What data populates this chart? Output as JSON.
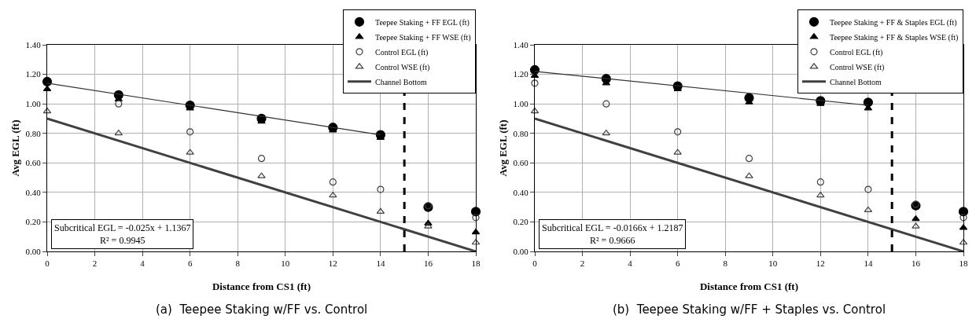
{
  "chart_data": [
    {
      "type": "scatter",
      "title": "(a)  Teepee Staking w/FF vs. Control",
      "xlabel": "Distance from CS1 (ft)",
      "ylabel": "Avg EGL (ft)",
      "x": [
        0,
        3,
        6,
        9,
        12,
        14,
        16,
        18
      ],
      "series": [
        {
          "name": "Teepee Staking + FF EGL (ft)",
          "color": "#000000",
          "marker": "circle",
          "values": [
            1.15,
            1.06,
            0.99,
            0.9,
            0.84,
            0.79,
            0.3,
            0.27
          ]
        },
        {
          "name": "Teepee Staking + FF WSE (ft)",
          "color": "#000000",
          "marker": "triangle",
          "values": [
            1.1,
            1.03,
            0.97,
            0.88,
            0.82,
            0.77,
            0.19,
            0.13
          ]
        },
        {
          "name": "Control EGL (ft)",
          "color": "#404040",
          "marker": "circle-open",
          "values": [
            null,
            1.0,
            0.81,
            0.63,
            0.47,
            0.42,
            0.31,
            0.23
          ]
        },
        {
          "name": "Control WSE (ft)",
          "color": "#404040",
          "marker": "triangle-open",
          "values": [
            0.95,
            0.8,
            0.67,
            0.51,
            0.38,
            0.27,
            0.17,
            0.06
          ]
        },
        {
          "name": "Channel Bottom",
          "type": "line",
          "color": "#404040",
          "marker": "none",
          "x": [
            0,
            18
          ],
          "values": [
            0.9,
            0.0
          ]
        },
        {
          "type": "line",
          "color": "#303030",
          "marker": "none",
          "x": [
            0,
            14
          ],
          "values": [
            1.14,
            0.79
          ]
        }
      ],
      "ref_lines": [
        {
          "axis": "x",
          "value": 15,
          "color": "#000000",
          "line_style": "dashed"
        }
      ],
      "annotations": [
        {
          "text": "Subcritical EGL = -0.025x + 1.1367\nR² = 0.9945"
        }
      ],
      "xlim": [
        0,
        18
      ],
      "xticks": [
        0,
        2,
        4,
        6,
        8,
        10,
        12,
        14,
        16,
        18
      ],
      "ylim": [
        0,
        1.4
      ],
      "yticks": [
        {
          "value": 0,
          "label": "0.00"
        },
        {
          "value": 0.2,
          "label": "0.20"
        },
        {
          "value": 0.4,
          "label": "0.40"
        },
        {
          "value": 0.6,
          "label": "0.60"
        },
        {
          "value": 0.8,
          "label": "0.80"
        },
        {
          "value": 1.0,
          "label": "1.00"
        },
        {
          "value": 1.2,
          "label": "1.20"
        },
        {
          "value": 1.4,
          "label": "1.40"
        }
      ],
      "grid": true,
      "legend": "top right"
    },
    {
      "type": "scatter",
      "title": "(b)  Teepee Staking w/FF + Staples vs. Control",
      "xlabel": "Distance from CS1 (ft)",
      "ylabel": "Avg EGL (ft)",
      "x": [
        0,
        3,
        6,
        9,
        12,
        14,
        16,
        18
      ],
      "series": [
        {
          "name": "Teepee Staking + FF & Staples EGL (ft)",
          "color": "#000000",
          "marker": "circle",
          "values": [
            1.23,
            1.17,
            1.12,
            1.04,
            1.02,
            1.01,
            0.31,
            0.27
          ]
        },
        {
          "name": "Teepee Staking + FF & Staples WSE (ft)",
          "color": "#000000",
          "marker": "triangle",
          "values": [
            1.19,
            1.14,
            1.1,
            1.01,
            1.0,
            0.97,
            0.22,
            0.16
          ]
        },
        {
          "name": "Control EGL (ft)",
          "color": "#404040",
          "marker": "circle-open",
          "values": [
            1.14,
            1.0,
            0.81,
            0.63,
            0.47,
            0.42,
            0.32,
            0.23
          ]
        },
        {
          "name": "Control WSE (ft)",
          "color": "#404040",
          "marker": "triangle-open",
          "values": [
            0.95,
            0.8,
            0.67,
            0.51,
            0.38,
            0.28,
            0.17,
            0.06
          ]
        },
        {
          "name": "Channel Bottom",
          "type": "line",
          "color": "#404040",
          "marker": "none",
          "x": [
            0,
            18
          ],
          "values": [
            0.9,
            0.0
          ]
        },
        {
          "type": "line",
          "color": "#303030",
          "marker": "none",
          "x": [
            0,
            14
          ],
          "values": [
            1.22,
            0.99
          ]
        }
      ],
      "ref_lines": [
        {
          "axis": "x",
          "value": 15,
          "color": "#000000",
          "line_style": "dashed"
        }
      ],
      "annotations": [
        {
          "text": "Subcritical EGL = -0.0166x + 1.2187\nR² = 0.9666"
        }
      ],
      "xlim": [
        0,
        18
      ],
      "xticks": [
        0,
        2,
        4,
        6,
        8,
        10,
        12,
        14,
        16,
        18
      ],
      "ylim": [
        0,
        1.4
      ],
      "yticks": [
        {
          "value": 0,
          "label": "0.00"
        },
        {
          "value": 0.2,
          "label": "0.20"
        },
        {
          "value": 0.4,
          "label": "0.40"
        },
        {
          "value": 0.6,
          "label": "0.60"
        },
        {
          "value": 0.8,
          "label": "0.80"
        },
        {
          "value": 1.0,
          "label": "1.00"
        },
        {
          "value": 1.2,
          "label": "1.20"
        },
        {
          "value": 1.4,
          "label": "1.40"
        }
      ],
      "grid": true,
      "legend": "top right"
    }
  ]
}
